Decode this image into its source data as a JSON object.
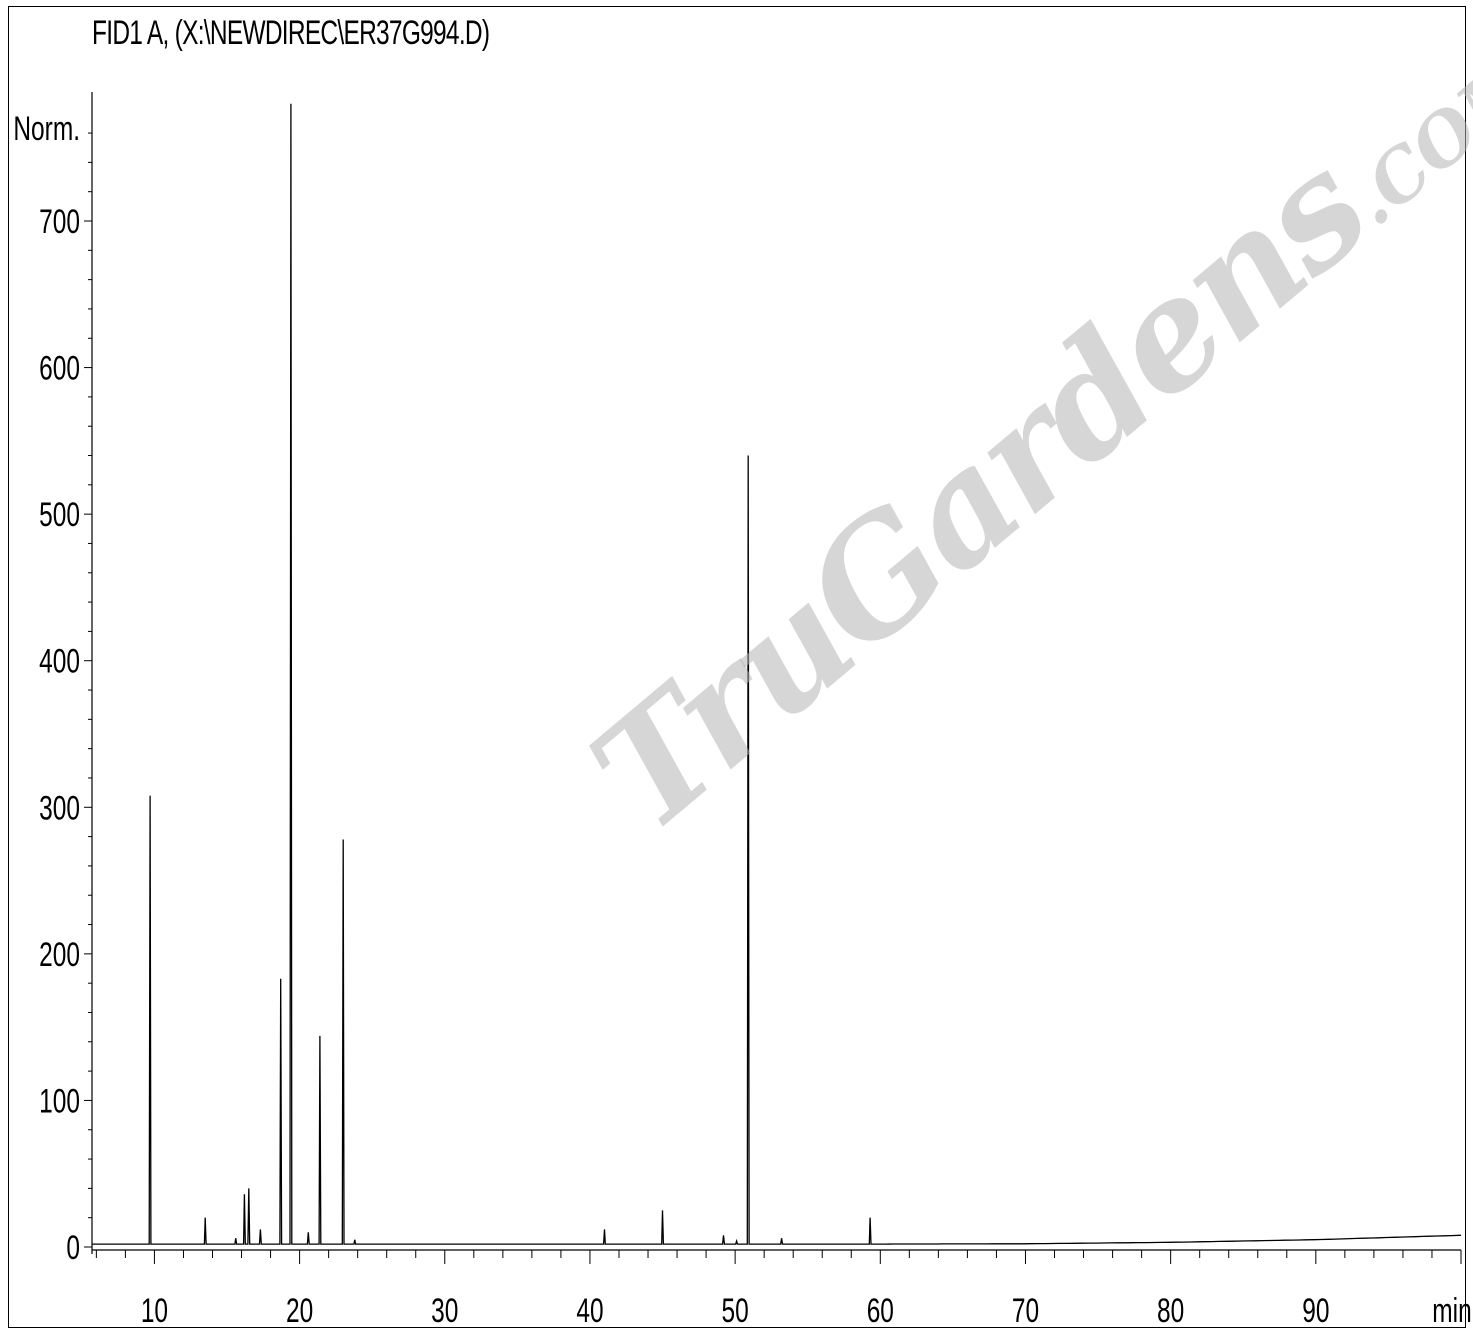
{
  "chart_data": {
    "type": "line",
    "title": "FID1 A,  (X:\\NEWDIREC\\ER37G994.D)",
    "ylabel": "Norm.",
    "xlabel": "min",
    "xlim": [
      5.7,
      100
    ],
    "ylim": [
      -10,
      780
    ],
    "x_ticks": [
      10,
      20,
      30,
      40,
      50,
      60,
      70,
      80,
      90
    ],
    "y_ticks": [
      0,
      100,
      200,
      300,
      400,
      500,
      600,
      700
    ],
    "baseline": [
      [
        5.7,
        2.0
      ],
      [
        60,
        2.0
      ],
      [
        70,
        2.2
      ],
      [
        80,
        3.2
      ],
      [
        90,
        5.0
      ],
      [
        100,
        8.0
      ]
    ],
    "peaks": [
      {
        "x": 9.7,
        "y": 308
      },
      {
        "x": 13.5,
        "y": 20
      },
      {
        "x": 15.6,
        "y": 6
      },
      {
        "x": 16.2,
        "y": 36
      },
      {
        "x": 16.5,
        "y": 40
      },
      {
        "x": 17.3,
        "y": 12
      },
      {
        "x": 18.7,
        "y": 183
      },
      {
        "x": 19.4,
        "y": 780
      },
      {
        "x": 20.6,
        "y": 10
      },
      {
        "x": 21.4,
        "y": 144
      },
      {
        "x": 23.0,
        "y": 278
      },
      {
        "x": 23.8,
        "y": 5
      },
      {
        "x": 41.0,
        "y": 12
      },
      {
        "x": 45.0,
        "y": 25
      },
      {
        "x": 49.2,
        "y": 8
      },
      {
        "x": 50.1,
        "y": 4
      },
      {
        "x": 50.9,
        "y": 540
      },
      {
        "x": 53.2,
        "y": 6
      },
      {
        "x": 59.3,
        "y": 20
      }
    ]
  },
  "watermark": {
    "text": "TruGardens",
    "suffix": ".COM"
  }
}
